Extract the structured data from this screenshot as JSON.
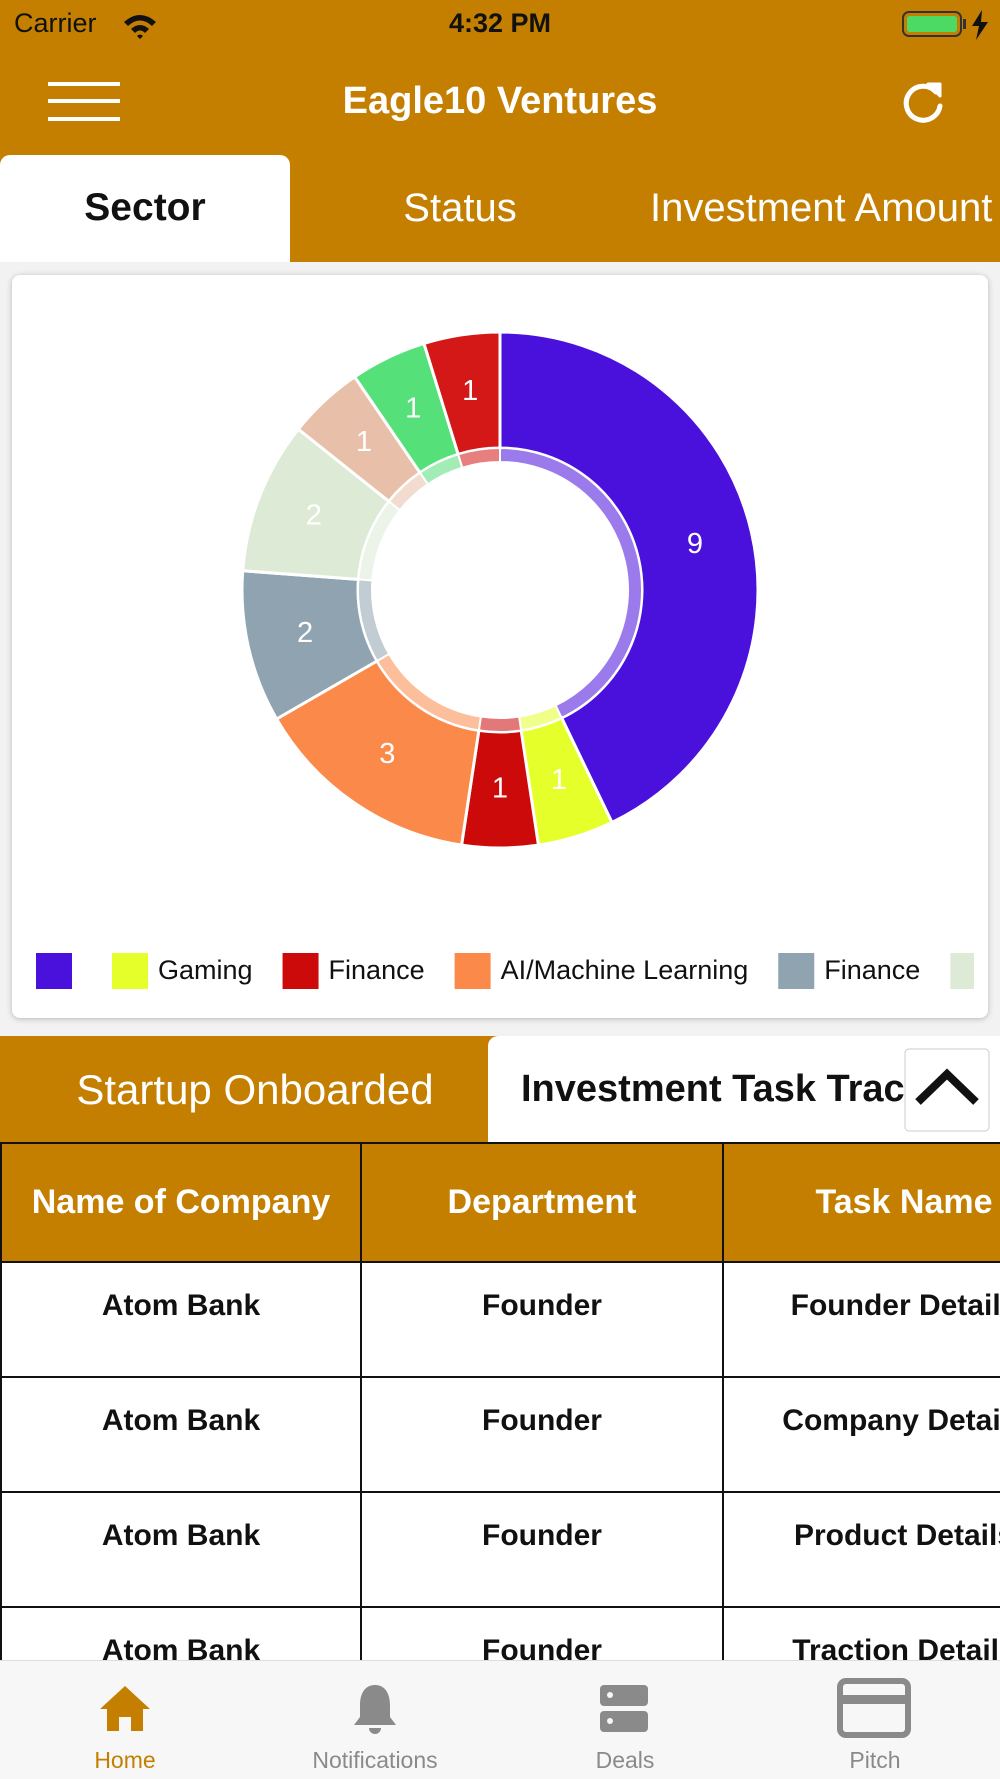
{
  "status_bar": {
    "carrier": "Carrier",
    "time": "4:32 PM"
  },
  "header": {
    "title": "Eagle10 Ventures"
  },
  "chart_tabs": [
    "Sector",
    "Status",
    "Investment Amount"
  ],
  "chart_data": {
    "type": "pie",
    "donut": true,
    "categories": [
      null,
      "Gaming",
      "Finance",
      "AI/Machine Learning",
      "Finance",
      null,
      null,
      null,
      null
    ],
    "values": [
      9,
      1,
      1,
      3,
      2,
      2,
      1,
      1,
      1
    ],
    "colors": [
      "#4a10dc",
      "#e5ff2a",
      "#cc0a0a",
      "#fb8a4a",
      "#8fa4b0",
      "#ddebd6",
      "#e8c0aa",
      "#55e07a",
      "#d41818"
    ]
  },
  "table_tabs": [
    "Startup Onboarded",
    "Investment Task Tracker"
  ],
  "table": {
    "header": [
      "Name of Company",
      "Department",
      "Task Name"
    ],
    "rows": [
      [
        "Atom Bank",
        "Founder",
        "Founder Details"
      ],
      [
        "Atom Bank",
        "Founder",
        "Company Details"
      ],
      [
        "Atom Bank",
        "Founder",
        "Product Details"
      ],
      [
        "Atom Bank",
        "Founder",
        "Traction Details"
      ]
    ]
  },
  "tab_bar": [
    "Home",
    "Notifications",
    "Deals",
    "Pitch"
  ]
}
